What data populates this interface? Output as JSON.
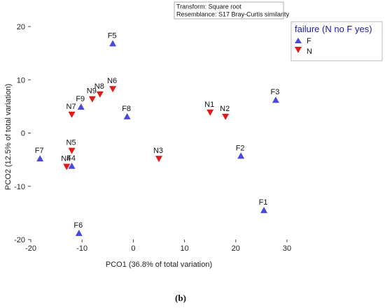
{
  "chart_data": {
    "type": "scatter",
    "xlabel": "PCO1 (36.8% of total variation)",
    "ylabel": "PCO2 (12.5% of total variation)",
    "xlim": [
      -20,
      30
    ],
    "ylim": [
      -20,
      20
    ],
    "xticks": [
      -20,
      -10,
      0,
      10,
      20,
      30
    ],
    "yticks": [
      -20,
      -10,
      0,
      10,
      20
    ],
    "annotation": [
      "Transform: Square root",
      "Resemblance: S17 Bray-Curtis similarity"
    ],
    "legend_title": "failure (N no F yes)",
    "caption": "(b)",
    "series": [
      {
        "name": "F",
        "marker": "triangle-up",
        "color": "#4a4ad8",
        "points": [
          {
            "label": "F1",
            "x": 25.5,
            "y": -14.5
          },
          {
            "label": "F2",
            "x": 21,
            "y": -4.3
          },
          {
            "label": "F3",
            "x": 27.8,
            "y": 6.2
          },
          {
            "label": "F4",
            "x": -12,
            "y": -6.2
          },
          {
            "label": "F5",
            "x": -4,
            "y": 16.8
          },
          {
            "label": "F6",
            "x": -10.6,
            "y": -18.8
          },
          {
            "label": "F7",
            "x": -18.2,
            "y": -4.8
          },
          {
            "label": "F8",
            "x": -1.2,
            "y": 3.1
          },
          {
            "label": "F9",
            "x": -10.2,
            "y": 4.9
          }
        ]
      },
      {
        "name": "N",
        "marker": "triangle-down",
        "color": "#e11a1a",
        "points": [
          {
            "label": "N1",
            "x": 15,
            "y": 3.9
          },
          {
            "label": "N2",
            "x": 18,
            "y": 3.1
          },
          {
            "label": "N3",
            "x": 5,
            "y": -4.8
          },
          {
            "label": "N4",
            "x": -13,
            "y": -6.3
          },
          {
            "label": "N5",
            "x": -12,
            "y": -3.3
          },
          {
            "label": "N6",
            "x": -4,
            "y": 8.3
          },
          {
            "label": "N7",
            "x": -12,
            "y": 3.5
          },
          {
            "label": "N8",
            "x": -6.5,
            "y": 7.3
          },
          {
            "label": "N9",
            "x": -8,
            "y": 6.4
          }
        ]
      }
    ]
  }
}
